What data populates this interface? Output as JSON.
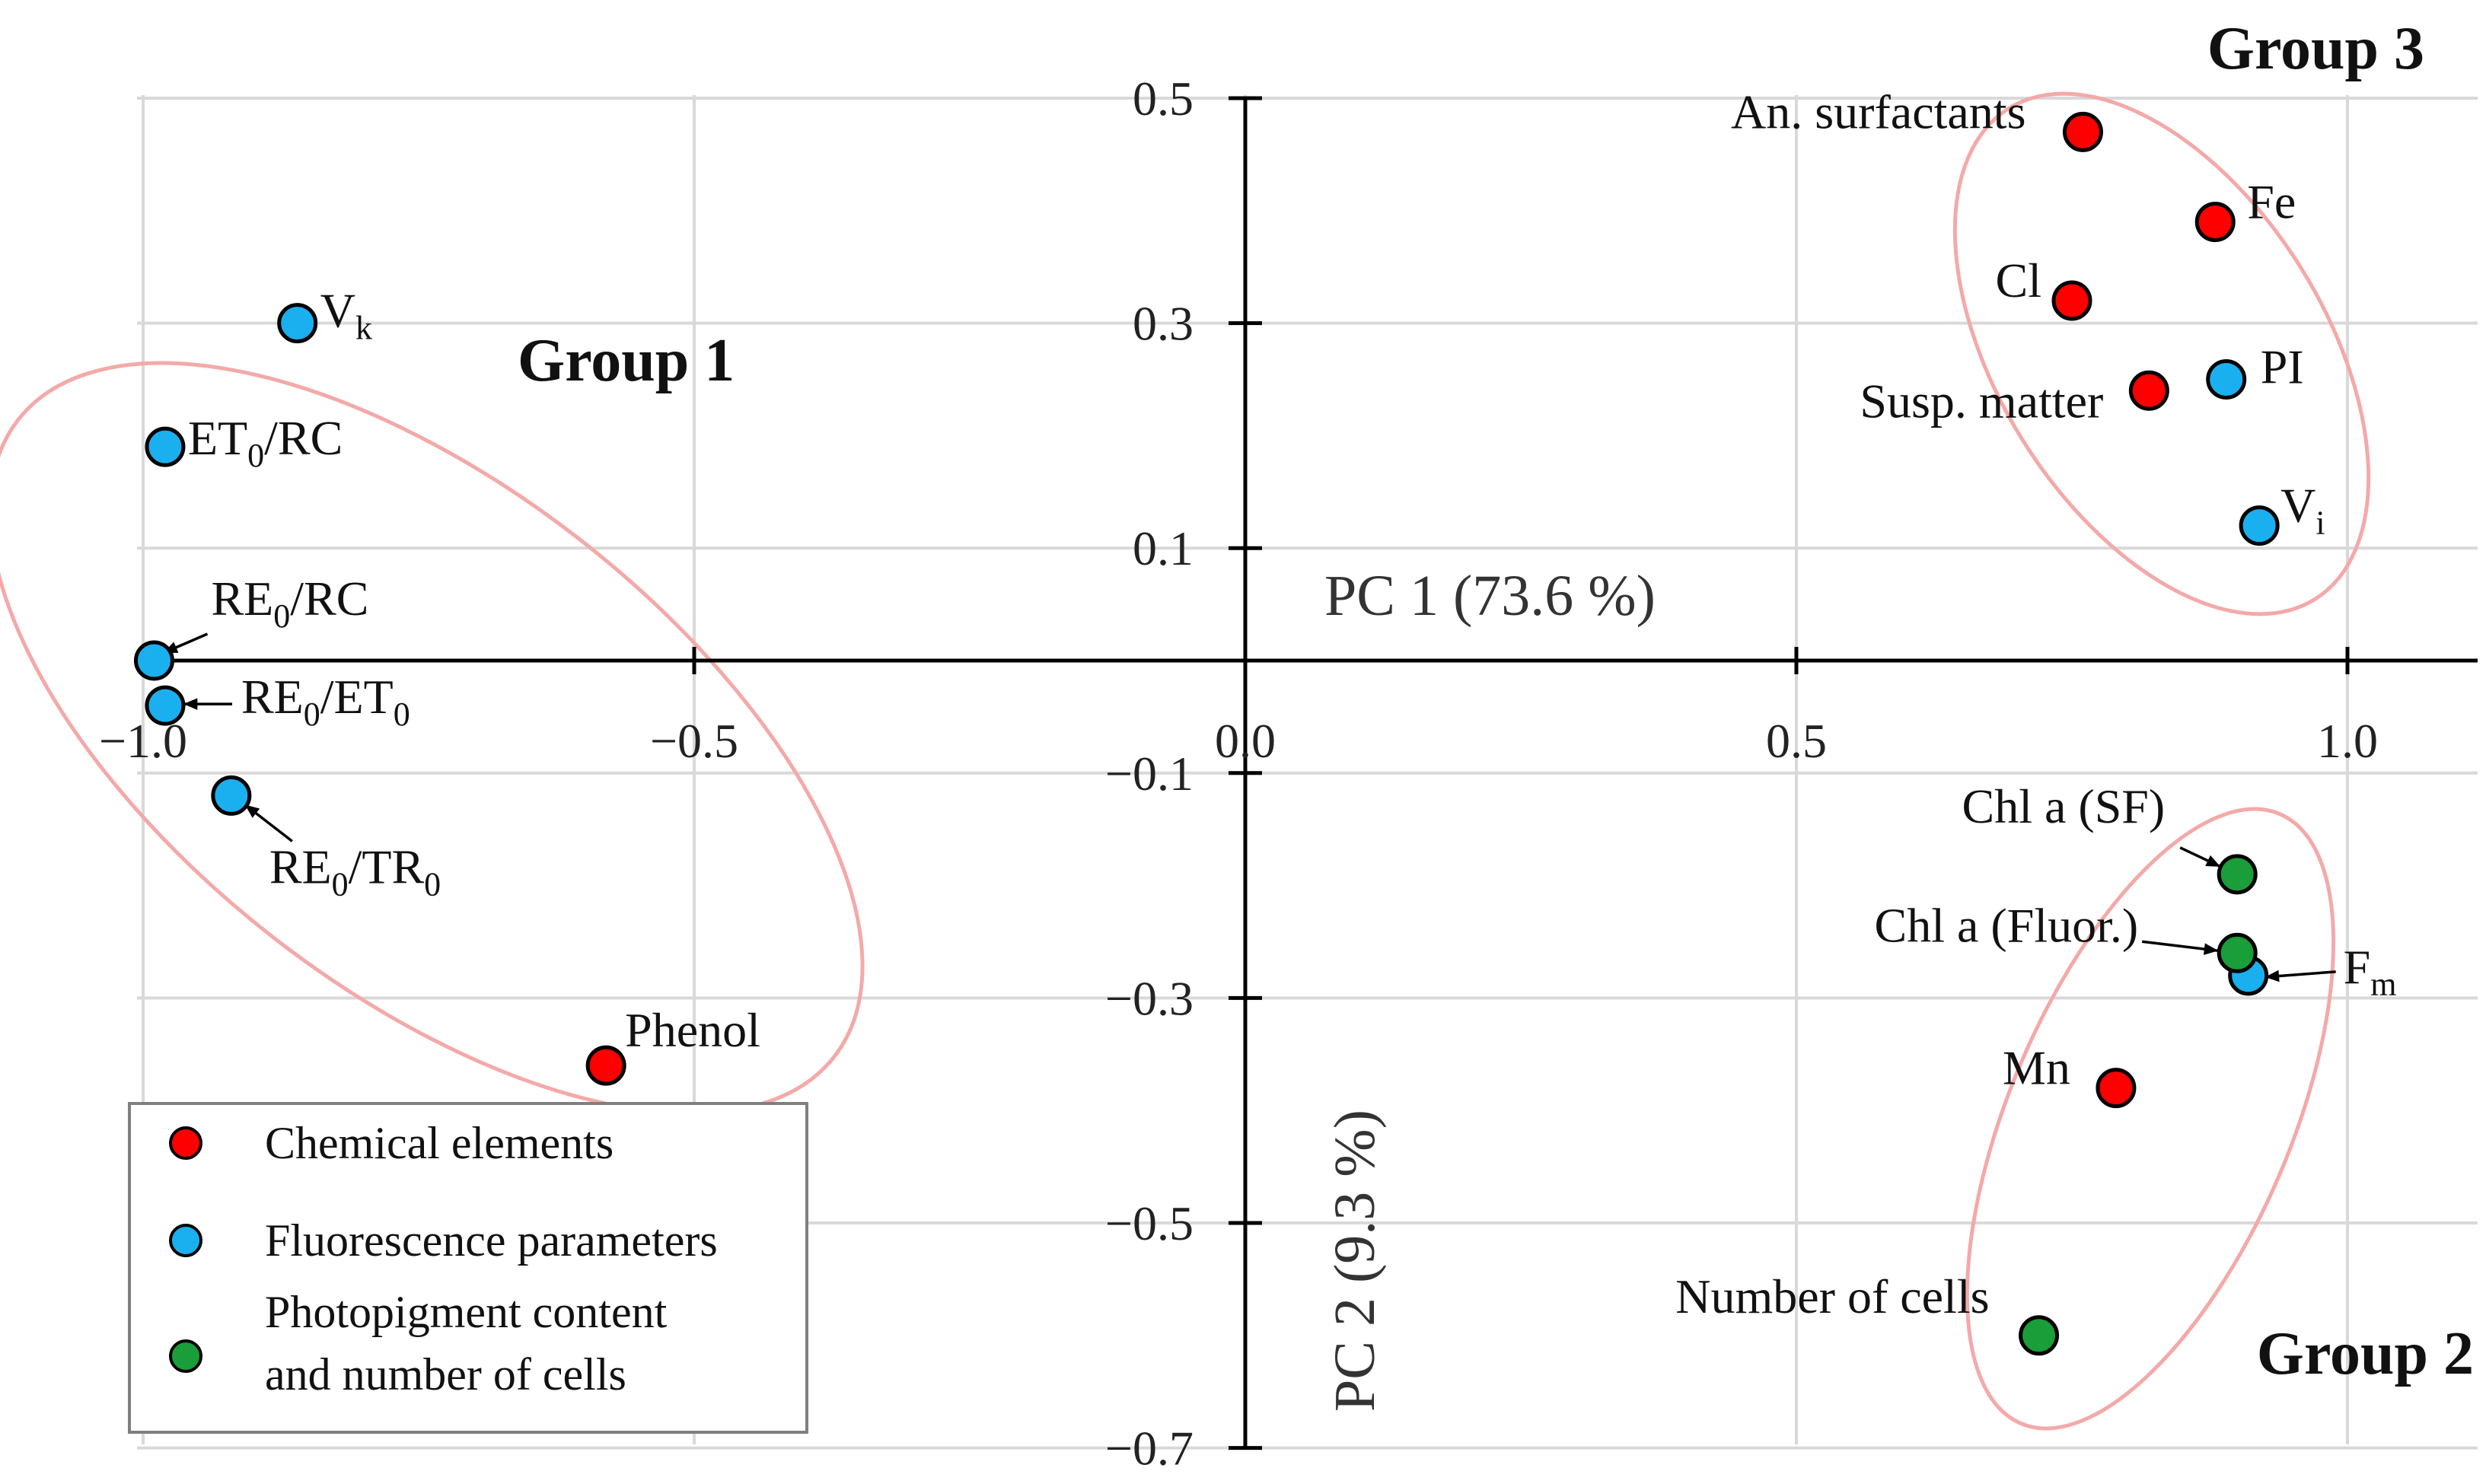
{
  "chart_data": {
    "type": "scatter",
    "xlabel": "PC 1 (73.6 %)",
    "ylabel": "PC 2 (9.3 %)",
    "xlim": [
      -1.0,
      1.1
    ],
    "ylim": [
      -0.7,
      0.5
    ],
    "grid": true,
    "x_ticks": [
      -1.0,
      -0.5,
      0.0,
      0.5,
      1.0
    ],
    "x_tick_labels": [
      "−1.0",
      "−0.5",
      "0.0",
      "0.5",
      "1.0"
    ],
    "y_ticks": [
      0.5,
      0.3,
      0.1,
      -0.1,
      -0.3,
      -0.5,
      -0.7
    ],
    "y_tick_labels": [
      "0.5",
      "0.3",
      "0.1",
      "−0.1",
      "−0.3",
      "−0.5",
      "−0.7"
    ],
    "legend_position": "bottom-left",
    "colors": {
      "chemical": "#ff0000",
      "fluorescence": "#1ab0f0",
      "photopigment": "#1a9e3a",
      "ellipse": "#f4a9a9"
    },
    "series": [
      {
        "name": "Chemical elements",
        "key": "chemical",
        "points": [
          {
            "label": "An. surfactants",
            "x": 0.76,
            "y": 0.47
          },
          {
            "label": "Fe",
            "x": 0.88,
            "y": 0.39
          },
          {
            "label": "Cl",
            "x": 0.75,
            "y": 0.32
          },
          {
            "label": "Susp. matter",
            "x": 0.82,
            "y": 0.24
          },
          {
            "label": "Phenol",
            "x": -0.58,
            "y": -0.36
          },
          {
            "label": "Mn",
            "x": 0.79,
            "y": -0.38
          }
        ]
      },
      {
        "name": "Fluorescence parameters",
        "key": "fluorescence",
        "points": [
          {
            "label": "V",
            "sub": "k",
            "x": -0.86,
            "y": 0.3
          },
          {
            "label": "ET",
            "sub": "0",
            "suffix": "/RC",
            "x": -0.98,
            "y": 0.19
          },
          {
            "label": "RE",
            "sub": "0",
            "suffix": "/RC",
            "x": -0.99,
            "y": 0.0
          },
          {
            "label": "RE",
            "sub": "0",
            "suffix": "/ET",
            "sub2": "0",
            "x": -0.98,
            "y": -0.04
          },
          {
            "label": "RE",
            "sub": "0",
            "suffix": "/TR",
            "sub2": "0",
            "x": -0.92,
            "y": -0.12
          },
          {
            "label": "PI",
            "x": 0.89,
            "y": 0.25
          },
          {
            "label": "V",
            "sub": "i",
            "x": 0.92,
            "y": 0.12
          },
          {
            "label": "F",
            "sub": "m",
            "x": 0.91,
            "y": -0.28
          }
        ]
      },
      {
        "name": "Photopigment content and number of cells",
        "key": "photopigment",
        "points": [
          {
            "label": "Chl a (SF)",
            "x": 0.9,
            "y": -0.19
          },
          {
            "label": "Chl a (Fluor.)",
            "x": 0.9,
            "y": -0.26
          },
          {
            "label": "Number of cells",
            "x": 0.72,
            "y": -0.6
          }
        ]
      }
    ],
    "groups": [
      {
        "label": "Group 1",
        "members": [
          "V",
          "ET/RC",
          "RE/RC",
          "RE/ET",
          "RE/TR",
          "Phenol"
        ]
      },
      {
        "label": "Group 2",
        "members": [
          "Chl a (SF)",
          "Chl a (Fluor.)",
          "F",
          "Mn",
          "Number of cells"
        ]
      },
      {
        "label": "Group 3",
        "members": [
          "An. surfactants",
          "Fe",
          "Cl",
          "Susp. matter",
          "PI",
          "V"
        ]
      }
    ],
    "legend": {
      "entries": [
        {
          "key": "chemical",
          "lines": [
            "Chemical elements"
          ]
        },
        {
          "key": "fluorescence",
          "lines": [
            "Fluorescence parameters"
          ]
        },
        {
          "key": "photopigment",
          "lines": [
            "Photopigment content",
            "and number of cells"
          ]
        }
      ]
    }
  }
}
